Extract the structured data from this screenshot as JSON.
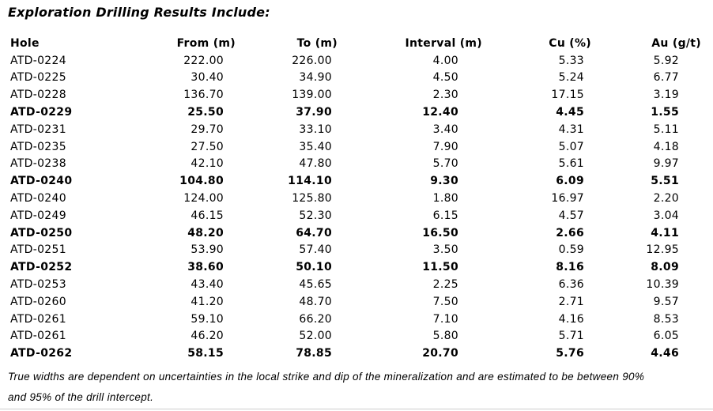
{
  "page": {
    "title": "Exploration Drilling Results Include:"
  },
  "table": {
    "columns": [
      "Hole",
      "From (m)",
      "To (m)",
      "Interval (m)",
      "Cu (%)",
      "Au (g/t)"
    ],
    "rows": [
      {
        "hole": "ATD-0224",
        "from": "222.00",
        "to": "226.00",
        "interval": "4.00",
        "cu": "5.33",
        "au": "5.92",
        "bold": false
      },
      {
        "hole": "ATD-0225",
        "from": "30.40",
        "to": "34.90",
        "interval": "4.50",
        "cu": "5.24",
        "au": "6.77",
        "bold": false
      },
      {
        "hole": "ATD-0228",
        "from": "136.70",
        "to": "139.00",
        "interval": "2.30",
        "cu": "17.15",
        "au": "3.19",
        "bold": false
      },
      {
        "hole": "ATD-0229",
        "from": "25.50",
        "to": "37.90",
        "interval": "12.40",
        "cu": "4.45",
        "au": "1.55",
        "bold": true
      },
      {
        "hole": "ATD-0231",
        "from": "29.70",
        "to": "33.10",
        "interval": "3.40",
        "cu": "4.31",
        "au": "5.11",
        "bold": false
      },
      {
        "hole": "ATD-0235",
        "from": "27.50",
        "to": "35.40",
        "interval": "7.90",
        "cu": "5.07",
        "au": "4.18",
        "bold": false
      },
      {
        "hole": "ATD-0238",
        "from": "42.10",
        "to": "47.80",
        "interval": "5.70",
        "cu": "5.61",
        "au": "9.97",
        "bold": false
      },
      {
        "hole": "ATD-0240",
        "from": "104.80",
        "to": "114.10",
        "interval": "9.30",
        "cu": "6.09",
        "au": "5.51",
        "bold": true
      },
      {
        "hole": "ATD-0240",
        "from": "124.00",
        "to": "125.80",
        "interval": "1.80",
        "cu": "16.97",
        "au": "2.20",
        "bold": false
      },
      {
        "hole": "ATD-0249",
        "from": "46.15",
        "to": "52.30",
        "interval": "6.15",
        "cu": "4.57",
        "au": "3.04",
        "bold": false
      },
      {
        "hole": "ATD-0250",
        "from": "48.20",
        "to": "64.70",
        "interval": "16.50",
        "cu": "2.66",
        "au": "4.11",
        "bold": true
      },
      {
        "hole": "ATD-0251",
        "from": "53.90",
        "to": "57.40",
        "interval": "3.50",
        "cu": "0.59",
        "au": "12.95",
        "bold": false
      },
      {
        "hole": "ATD-0252",
        "from": "38.60",
        "to": "50.10",
        "interval": "11.50",
        "cu": "8.16",
        "au": "8.09",
        "bold": true
      },
      {
        "hole": "ATD-0253",
        "from": "43.40",
        "to": "45.65",
        "interval": "2.25",
        "cu": "6.36",
        "au": "10.39",
        "bold": false
      },
      {
        "hole": "ATD-0260",
        "from": "41.20",
        "to": "48.70",
        "interval": "7.50",
        "cu": "2.71",
        "au": "9.57",
        "bold": false
      },
      {
        "hole": "ATD-0261",
        "from": "59.10",
        "to": "66.20",
        "interval": "7.10",
        "cu": "4.16",
        "au": "8.53",
        "bold": false
      },
      {
        "hole": "ATD-0261",
        "from": "46.20",
        "to": "52.00",
        "interval": "5.80",
        "cu": "5.71",
        "au": "6.05",
        "bold": false
      },
      {
        "hole": "ATD-0262",
        "from": "58.15",
        "to": "78.85",
        "interval": "20.70",
        "cu": "5.76",
        "au": "4.46",
        "bold": true
      }
    ]
  },
  "footnote": {
    "lines": [
      "True widths are dependent on uncertainties in the local strike and dip of the mineralization and are estimated to be between 90%",
      "and 95% of the drill intercept."
    ]
  },
  "colors": {
    "text": "#000000",
    "divider": "#cccccc"
  }
}
